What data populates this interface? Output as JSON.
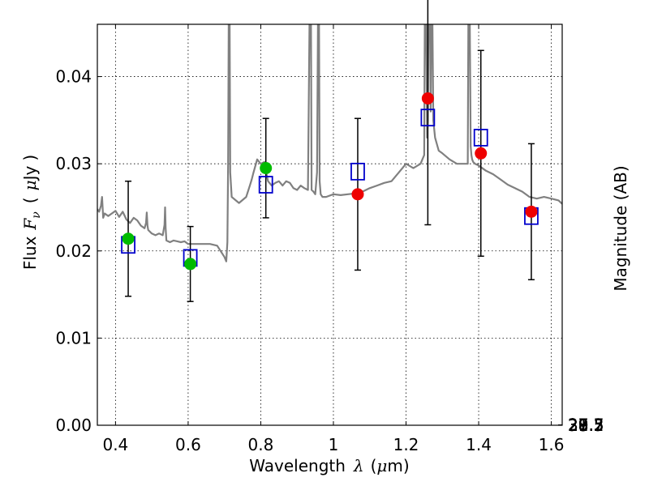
{
  "chart_data": {
    "type": "scatter",
    "title": "",
    "xlabel": "Wavelength",
    "xlabel_symbol": "λ",
    "xlabel_unit_open": "(",
    "xlabel_unit_mu": "μ",
    "xlabel_unit_rest": "m)",
    "ylabel": "Flux",
    "ylabel_symbol": "F",
    "ylabel_subscript": "ν",
    "ylabel_unit_open": "(",
    "ylabel_unit_mu": "μ",
    "ylabel_unit_rest": "Jy",
    "ylabel_unit_close": ")",
    "y2label": "Magnitude (AB)",
    "xlim": [
      0.35,
      1.63
    ],
    "ylim": [
      0.0,
      0.046
    ],
    "grid": true,
    "x_ticks": [
      0.4,
      0.6,
      0.8,
      1.0,
      1.2,
      1.4,
      1.6
    ],
    "x_tick_labels": [
      "0.4",
      "0.6",
      "0.8",
      "1",
      "1.2",
      "1.4",
      "1.6"
    ],
    "y_ticks": [
      0.0,
      0.01,
      0.02,
      0.03,
      0.04
    ],
    "y_tick_labels": [
      "0.00",
      "0.01",
      "0.02",
      "0.03",
      "0.04"
    ],
    "mag_ticks": [
      27.3,
      27.5,
      27.7,
      28,
      28.2,
      28.5,
      29,
      29.5,
      30,
      31
    ],
    "mag_tick_labels": [
      "27.3",
      "27.5",
      "27.7",
      "28",
      "28.2",
      "28.5",
      "29",
      "29.5",
      "30",
      "31"
    ],
    "colors": {
      "sed": "#808080",
      "green": "#00bb00",
      "red": "#ee0000",
      "model_square": "#0000cc",
      "errorbar": "#000000"
    },
    "series": [
      {
        "kind": "observed_green",
        "x": [
          0.435,
          0.606,
          0.814
        ],
        "y": [
          0.0214,
          0.0185,
          0.0295
        ],
        "yerr": [
          0.0066,
          0.0043,
          0.0057
        ]
      },
      {
        "kind": "observed_red",
        "x": [
          1.067,
          1.26,
          1.406,
          1.545
        ],
        "y": [
          0.0265,
          0.0375,
          0.0312,
          0.0245
        ],
        "yerr": [
          0.0087,
          0.0145,
          0.0118,
          0.0078
        ]
      },
      {
        "kind": "model_squares",
        "x": [
          0.435,
          0.606,
          0.814,
          1.067,
          1.26,
          1.406,
          1.545
        ],
        "y": [
          0.0207,
          0.0192,
          0.0276,
          0.0291,
          0.0353,
          0.033,
          0.024
        ]
      }
    ],
    "sed_curve": {
      "x": [
        0.35,
        0.355,
        0.36,
        0.363,
        0.366,
        0.37,
        0.38,
        0.39,
        0.4,
        0.41,
        0.42,
        0.43,
        0.44,
        0.45,
        0.46,
        0.47,
        0.48,
        0.484,
        0.486,
        0.488,
        0.49,
        0.5,
        0.51,
        0.52,
        0.53,
        0.535,
        0.5365,
        0.538,
        0.54,
        0.55,
        0.56,
        0.57,
        0.58,
        0.59,
        0.6,
        0.62,
        0.64,
        0.66,
        0.68,
        0.7,
        0.705,
        0.708,
        0.71,
        0.712,
        0.714,
        0.716,
        0.72,
        0.74,
        0.76,
        0.77,
        0.775,
        0.78,
        0.79,
        0.8,
        0.81,
        0.815,
        0.82,
        0.83,
        0.84,
        0.85,
        0.86,
        0.87,
        0.88,
        0.89,
        0.9,
        0.91,
        0.92,
        0.93,
        0.935,
        0.938,
        0.94,
        0.945,
        0.95,
        0.955,
        0.958,
        0.96,
        0.962,
        0.965,
        0.97,
        0.98,
        1.0,
        1.02,
        1.04,
        1.06,
        1.08,
        1.1,
        1.12,
        1.14,
        1.16,
        1.18,
        1.2,
        1.22,
        1.24,
        1.25,
        1.252,
        1.255,
        1.258,
        1.26,
        1.262,
        1.265,
        1.268,
        1.27,
        1.272,
        1.275,
        1.28,
        1.29,
        1.3,
        1.32,
        1.34,
        1.36,
        1.37,
        1.372,
        1.375,
        1.378,
        1.38,
        1.382,
        1.385,
        1.39,
        1.4,
        1.42,
        1.44,
        1.46,
        1.48,
        1.5,
        1.52,
        1.54,
        1.56,
        1.58,
        1.6,
        1.62,
        1.63
      ],
      "y": [
        0.0248,
        0.0245,
        0.0252,
        0.0262,
        0.0238,
        0.0243,
        0.024,
        0.0243,
        0.0246,
        0.0239,
        0.0245,
        0.0236,
        0.0232,
        0.0238,
        0.0235,
        0.0229,
        0.0226,
        0.0232,
        0.0244,
        0.0229,
        0.0224,
        0.022,
        0.0218,
        0.022,
        0.0218,
        0.023,
        0.025,
        0.0226,
        0.0212,
        0.021,
        0.0212,
        0.0211,
        0.021,
        0.0211,
        0.0208,
        0.0208,
        0.0208,
        0.0208,
        0.0206,
        0.0193,
        0.0188,
        0.021,
        0.03,
        0.05,
        0.05,
        0.029,
        0.0262,
        0.0255,
        0.0262,
        0.0275,
        0.0282,
        0.029,
        0.0305,
        0.03,
        0.0302,
        0.029,
        0.028,
        0.0275,
        0.0278,
        0.028,
        0.0275,
        0.028,
        0.0278,
        0.0272,
        0.027,
        0.0275,
        0.0272,
        0.027,
        0.05,
        0.05,
        0.027,
        0.0268,
        0.0265,
        0.029,
        0.05,
        0.05,
        0.028,
        0.0265,
        0.0262,
        0.0262,
        0.0265,
        0.0264,
        0.0265,
        0.0266,
        0.0268,
        0.0272,
        0.0275,
        0.0278,
        0.028,
        0.029,
        0.03,
        0.0295,
        0.03,
        0.031,
        0.05,
        0.05,
        0.033,
        0.035,
        0.05,
        0.05,
        0.036,
        0.05,
        0.05,
        0.035,
        0.033,
        0.0315,
        0.0312,
        0.0305,
        0.03,
        0.03,
        0.03,
        0.05,
        0.05,
        0.032,
        0.031,
        0.0305,
        0.0302,
        0.03,
        0.0298,
        0.0292,
        0.0288,
        0.0282,
        0.0276,
        0.0272,
        0.0268,
        0.0262,
        0.026,
        0.0262,
        0.026,
        0.0258,
        0.0254
      ]
    }
  }
}
